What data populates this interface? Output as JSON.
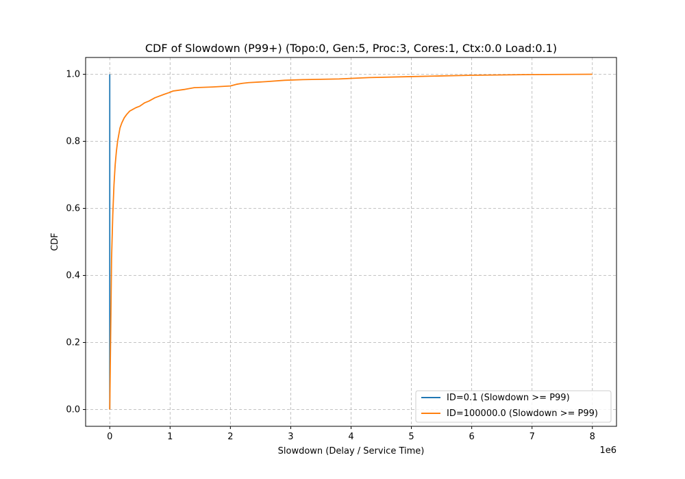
{
  "chart_data": {
    "type": "line",
    "title": "CDF of Slowdown (P99+) (Topo:0, Gen:5, Proc:3, Cores:1, Ctx:0.0 Load:0.1)",
    "xlabel": "Slowdown (Delay / Service Time)",
    "ylabel": "CDF",
    "x_offset_label": "1e6",
    "xlim": [
      -0.4,
      8.4
    ],
    "ylim": [
      -0.05,
      1.05
    ],
    "x_scale_multiplier": 1000000,
    "xticks": [
      0,
      1,
      2,
      3,
      4,
      5,
      6,
      7,
      8
    ],
    "xtick_labels": [
      "0",
      "1",
      "2",
      "3",
      "4",
      "5",
      "6",
      "7",
      "8"
    ],
    "yticks": [
      0.0,
      0.2,
      0.4,
      0.6,
      0.8,
      1.0
    ],
    "ytick_labels": [
      "0.0",
      "0.2",
      "0.4",
      "0.6",
      "0.8",
      "1.0"
    ],
    "grid": true,
    "legend_position": "bottom-right",
    "series": [
      {
        "name": "ID=0.1 (Slowdown >= P99)",
        "color": "#1f77b4",
        "x": [
          0.0,
          0.0
        ],
        "y": [
          0.0,
          1.0
        ]
      },
      {
        "name": "ID=100000.0 (Slowdown >= P99)",
        "color": "#ff7f0e",
        "x": [
          0.0,
          0.01,
          0.02,
          0.03,
          0.05,
          0.07,
          0.09,
          0.11,
          0.13,
          0.15,
          0.17,
          0.2,
          0.24,
          0.28,
          0.33,
          0.38,
          0.43,
          0.5,
          0.58,
          0.65,
          0.75,
          0.9,
          0.98,
          1.05,
          1.25,
          1.4,
          1.7,
          2.0,
          2.1,
          2.2,
          2.3,
          2.6,
          2.9,
          3.2,
          3.8,
          4.3,
          5.0,
          5.5,
          6.0,
          6.5,
          7.0,
          8.0
        ],
        "y": [
          0.0,
          0.15,
          0.3,
          0.45,
          0.58,
          0.67,
          0.73,
          0.77,
          0.8,
          0.82,
          0.84,
          0.855,
          0.87,
          0.88,
          0.89,
          0.895,
          0.9,
          0.905,
          0.915,
          0.92,
          0.93,
          0.94,
          0.945,
          0.95,
          0.955,
          0.96,
          0.962,
          0.965,
          0.97,
          0.973,
          0.975,
          0.978,
          0.982,
          0.984,
          0.986,
          0.99,
          0.993,
          0.995,
          0.997,
          0.998,
          0.999,
          1.0
        ]
      }
    ]
  }
}
